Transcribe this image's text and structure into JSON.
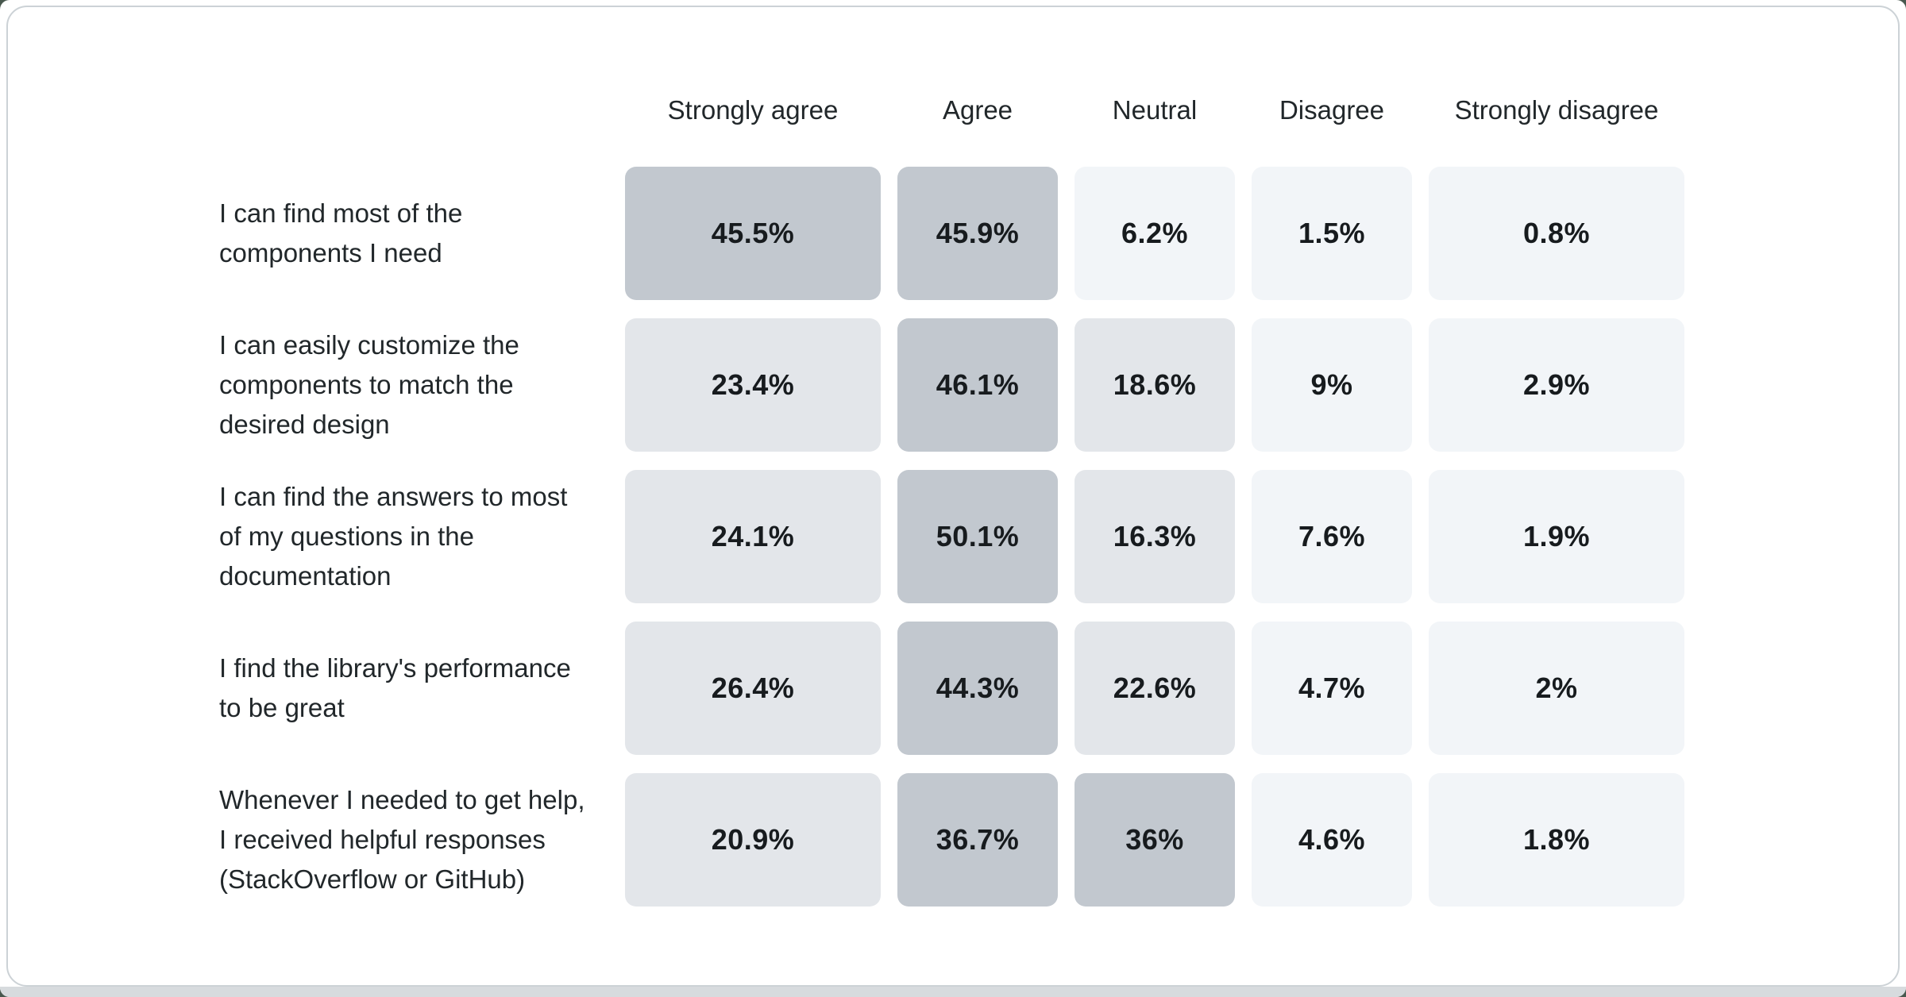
{
  "page": {
    "outer_background": "#48584e",
    "window_background": "#ffffff",
    "bottom_strip_color": "#d7dbde",
    "card_background": "#ffffff",
    "card_border_color": "#ccd2d6"
  },
  "heatmap": {
    "column_headers": [
      "Strongly agree",
      "Agree",
      "Neutral",
      "Disagree",
      "Strongly disagree"
    ],
    "level_colors": {
      "high": "#c2c8cf",
      "mid": "#e3e6ea",
      "low": "#f2f5f8"
    },
    "text_colors": {
      "header": "#21272a",
      "label": "#21272a",
      "value": "#171b1e"
    },
    "rows": [
      {
        "label": "I can find most of the components I need",
        "label_lines": [
          "I can find most of the",
          "components I need"
        ],
        "cells": [
          {
            "text": "45.5%",
            "level": "high"
          },
          {
            "text": "45.9%",
            "level": "high"
          },
          {
            "text": "6.2%",
            "level": "low"
          },
          {
            "text": "1.5%",
            "level": "low"
          },
          {
            "text": "0.8%",
            "level": "low"
          }
        ]
      },
      {
        "label": "I can easily customize the components to match the desired design",
        "label_lines": [
          "I can easily customize the",
          "components to match the",
          "desired design"
        ],
        "cells": [
          {
            "text": "23.4%",
            "level": "mid"
          },
          {
            "text": "46.1%",
            "level": "high"
          },
          {
            "text": "18.6%",
            "level": "mid"
          },
          {
            "text": "9%",
            "level": "low"
          },
          {
            "text": "2.9%",
            "level": "low"
          }
        ]
      },
      {
        "label": "I can find the answers to most of my questions in the documentation",
        "label_lines": [
          "I can find the answers to most",
          "of my questions in the",
          "documentation"
        ],
        "cells": [
          {
            "text": "24.1%",
            "level": "mid"
          },
          {
            "text": "50.1%",
            "level": "high"
          },
          {
            "text": "16.3%",
            "level": "mid"
          },
          {
            "text": "7.6%",
            "level": "low"
          },
          {
            "text": "1.9%",
            "level": "low"
          }
        ]
      },
      {
        "label": "I find the library's performance to be great",
        "label_lines": [
          "I find the library's performance",
          "to be great"
        ],
        "cells": [
          {
            "text": "26.4%",
            "level": "mid"
          },
          {
            "text": "44.3%",
            "level": "high"
          },
          {
            "text": "22.6%",
            "level": "mid"
          },
          {
            "text": "4.7%",
            "level": "low"
          },
          {
            "text": "2%",
            "level": "low"
          }
        ]
      },
      {
        "label": "Whenever I needed to get help, I received helpful responses (StackOverflow or GitHub)",
        "label_lines": [
          "Whenever I needed to get help,",
          "I received helpful responses",
          "(StackOverflow or GitHub)"
        ],
        "cells": [
          {
            "text": "20.9%",
            "level": "mid"
          },
          {
            "text": "36.7%",
            "level": "high"
          },
          {
            "text": "36%",
            "level": "high"
          },
          {
            "text": "4.6%",
            "level": "low"
          },
          {
            "text": "1.8%",
            "level": "low"
          }
        ]
      }
    ]
  },
  "chart_data": {
    "type": "heatmap",
    "title": "",
    "columns": [
      "Strongly agree",
      "Agree",
      "Neutral",
      "Disagree",
      "Strongly disagree"
    ],
    "rows": [
      "I can find most of the components I need",
      "I can easily customize the components to match the desired design",
      "I can find the answers to most of my questions in the documentation",
      "I find the library's performance to be great",
      "Whenever I needed to get help, I received helpful responses (StackOverflow or GitHub)"
    ],
    "values": [
      [
        45.5,
        45.9,
        6.2,
        1.5,
        0.8
      ],
      [
        23.4,
        46.1,
        18.6,
        9,
        2.9
      ],
      [
        24.1,
        50.1,
        16.3,
        7.6,
        1.9
      ],
      [
        26.4,
        44.3,
        22.6,
        4.7,
        2
      ],
      [
        20.9,
        36.7,
        36,
        4.6,
        1.8
      ]
    ],
    "value_format": "percent",
    "color_scale": {
      "low": "#f2f5f8",
      "mid": "#e3e6ea",
      "high": "#c2c8cf"
    },
    "legend": "none",
    "grid": false
  }
}
